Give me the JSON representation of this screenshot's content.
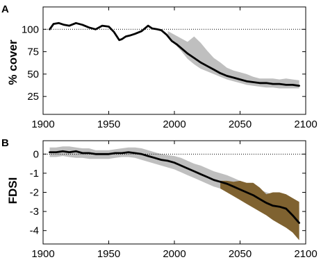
{
  "chart_data": [
    {
      "type": "line",
      "panel_label": "A",
      "ylabel": "% cover",
      "xlim": [
        1900,
        2100
      ],
      "ylim": [
        5,
        125
      ],
      "xticks": [
        1900,
        1950,
        2000,
        2050,
        2100
      ],
      "yticks": [
        25,
        50,
        75,
        100
      ],
      "reference_line": 100,
      "colors": {
        "line": "#000000",
        "band": "#bfbfbf",
        "reference": "#000000"
      },
      "series": [
        {
          "x": [
            1905,
            1908,
            1912,
            1916,
            1920,
            1925,
            1930,
            1935,
            1940,
            1945,
            1950,
            1954,
            1958,
            1960,
            1963,
            1966,
            1970,
            1975,
            1980,
            1983,
            1987,
            1990,
            1994,
            1998,
            2002,
            2006,
            2010,
            2015,
            2020,
            2025,
            2030,
            2035,
            2040,
            2045,
            2050,
            2055,
            2060,
            2065,
            2070,
            2075,
            2080,
            2085,
            2090,
            2095
          ],
          "values": [
            100,
            106,
            107,
            105,
            104,
            107,
            105,
            102,
            100,
            104,
            103,
            97,
            88,
            89,
            92,
            93,
            95,
            98,
            104,
            101,
            100,
            99,
            94,
            87,
            83,
            78,
            73,
            68,
            63,
            59,
            55,
            51,
            48,
            46,
            44,
            42,
            41,
            40,
            40,
            39,
            39,
            38,
            38,
            37
          ]
        }
      ],
      "band": {
        "x": [
          1995,
          2000,
          2005,
          2010,
          2015,
          2020,
          2025,
          2030,
          2035,
          2040,
          2045,
          2050,
          2055,
          2060,
          2065,
          2070,
          2075,
          2080,
          2085,
          2090,
          2095
        ],
        "lower": [
          93,
          84,
          76,
          67,
          61,
          56,
          53,
          50,
          47,
          44,
          42,
          40,
          38,
          37,
          36,
          35,
          35,
          34,
          34,
          34,
          34
        ],
        "upper": [
          98,
          94,
          90,
          86,
          92,
          85,
          76,
          68,
          63,
          57,
          54,
          52,
          50,
          47,
          45,
          45,
          45,
          44,
          45,
          44,
          43
        ]
      }
    },
    {
      "type": "line",
      "panel_label": "B",
      "ylabel": "FDSI",
      "xlim": [
        1900,
        2100
      ],
      "ylim": [
        -4.7,
        0.7
      ],
      "xticks": [
        1900,
        1950,
        2000,
        2050,
        2100
      ],
      "yticks": [
        -4,
        -3,
        -2,
        -1,
        0
      ],
      "reference_line": 0,
      "colors": {
        "line": "#000000",
        "band": "#bfbfbf",
        "band_future": "#7f6230",
        "reference": "#000000"
      },
      "series": [
        {
          "x": [
            1905,
            1910,
            1915,
            1920,
            1925,
            1930,
            1935,
            1940,
            1945,
            1950,
            1955,
            1960,
            1965,
            1970,
            1975,
            1980,
            1985,
            1990,
            1995,
            2000,
            2005,
            2010,
            2015,
            2020,
            2025,
            2030,
            2035,
            2040,
            2045,
            2050,
            2055,
            2060,
            2065,
            2070,
            2075,
            2080,
            2085,
            2090,
            2095
          ],
          "values": [
            0.1,
            0.1,
            0.15,
            0.1,
            0.15,
            0.05,
            0.05,
            0.0,
            0.0,
            0.0,
            0.05,
            0.05,
            0.1,
            0.05,
            0.0,
            -0.1,
            -0.2,
            -0.3,
            -0.35,
            -0.45,
            -0.6,
            -0.75,
            -0.9,
            -1.05,
            -1.2,
            -1.35,
            -1.45,
            -1.55,
            -1.7,
            -1.85,
            -2.0,
            -2.15,
            -2.35,
            -2.55,
            -2.7,
            -2.75,
            -2.85,
            -3.2,
            -3.6
          ]
        }
      ],
      "band": {
        "x": [
          1905,
          1910,
          1915,
          1920,
          1925,
          1930,
          1935,
          1940,
          1945,
          1950,
          1955,
          1960,
          1965,
          1970,
          1975,
          1980,
          1985,
          1990,
          1995,
          2000,
          2005,
          2010,
          2015,
          2020,
          2025,
          2030,
          2035,
          2040,
          2045,
          2050,
          2055,
          2060,
          2065,
          2070,
          2075,
          2080,
          2085,
          2090,
          2095
        ],
        "lower": [
          -0.15,
          -0.15,
          -0.1,
          -0.15,
          -0.2,
          -0.2,
          -0.25,
          -0.25,
          -0.25,
          -0.25,
          -0.2,
          -0.15,
          -0.15,
          -0.2,
          -0.3,
          -0.4,
          -0.5,
          -0.6,
          -0.7,
          -0.8,
          -0.95,
          -1.1,
          -1.25,
          -1.4,
          -1.55,
          -1.7,
          -1.8,
          -1.9,
          -2.0,
          -2.1,
          -2.3,
          -2.5,
          -2.7,
          -2.9,
          -3.1,
          -3.3,
          -3.5,
          -3.9,
          -4.4
        ],
        "upper": [
          0.35,
          0.35,
          0.4,
          0.4,
          0.35,
          0.3,
          0.3,
          0.2,
          0.2,
          0.2,
          0.25,
          0.3,
          0.35,
          0.35,
          0.3,
          0.2,
          0.1,
          0.0,
          -0.05,
          -0.1,
          -0.2,
          -0.35,
          -0.5,
          -0.6,
          -0.75,
          -0.9,
          -1.0,
          -1.1,
          -1.25,
          -1.4,
          -1.55,
          -1.7,
          -1.85,
          -2.0,
          -2.1,
          -2.2,
          -2.3,
          -2.5,
          -2.8
        ]
      },
      "band_future": {
        "x": [
          2035,
          2040,
          2045,
          2050,
          2055,
          2060,
          2065,
          2070,
          2075,
          2080,
          2085,
          2090,
          2095
        ],
        "lower": [
          -1.8,
          -2.0,
          -2.2,
          -2.4,
          -2.6,
          -2.8,
          -3.0,
          -3.2,
          -3.45,
          -3.65,
          -3.85,
          -4.1,
          -4.5
        ],
        "upper": [
          -1.4,
          -1.4,
          -1.45,
          -1.4,
          -1.5,
          -1.5,
          -1.75,
          -2.1,
          -2.0,
          -2.0,
          -2.1,
          -2.3,
          -2.5
        ]
      }
    }
  ]
}
